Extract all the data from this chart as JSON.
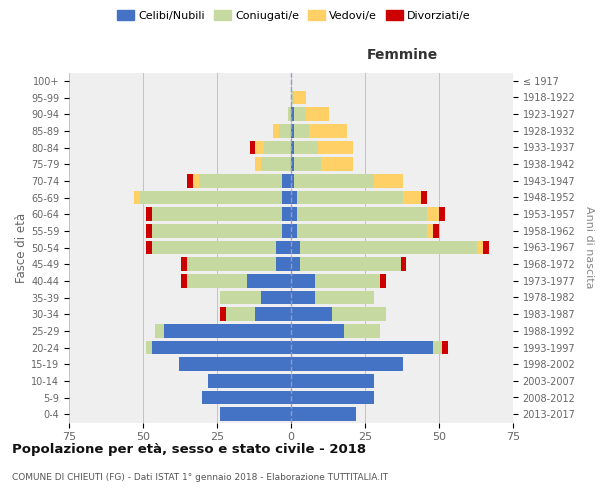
{
  "age_groups": [
    "0-4",
    "5-9",
    "10-14",
    "15-19",
    "20-24",
    "25-29",
    "30-34",
    "35-39",
    "40-44",
    "45-49",
    "50-54",
    "55-59",
    "60-64",
    "65-69",
    "70-74",
    "75-79",
    "80-84",
    "85-89",
    "90-94",
    "95-99",
    "100+"
  ],
  "birth_years": [
    "2013-2017",
    "2008-2012",
    "2003-2007",
    "1998-2002",
    "1993-1997",
    "1988-1992",
    "1983-1987",
    "1978-1982",
    "1973-1977",
    "1968-1972",
    "1963-1967",
    "1958-1962",
    "1953-1957",
    "1948-1952",
    "1943-1947",
    "1938-1942",
    "1933-1937",
    "1928-1932",
    "1923-1927",
    "1918-1922",
    "≤ 1917"
  ],
  "males": {
    "single": [
      24,
      30,
      28,
      38,
      47,
      43,
      12,
      10,
      15,
      5,
      5,
      3,
      3,
      3,
      3,
      0,
      0,
      0,
      0,
      0,
      0
    ],
    "married": [
      0,
      0,
      0,
      0,
      2,
      3,
      10,
      14,
      20,
      30,
      42,
      44,
      44,
      48,
      28,
      10,
      9,
      4,
      1,
      0,
      0
    ],
    "widowed": [
      0,
      0,
      0,
      0,
      0,
      0,
      0,
      0,
      0,
      0,
      0,
      0,
      0,
      2,
      2,
      2,
      3,
      2,
      0,
      0,
      0
    ],
    "divorced": [
      0,
      0,
      0,
      0,
      0,
      0,
      2,
      0,
      2,
      2,
      2,
      2,
      2,
      0,
      2,
      0,
      2,
      0,
      0,
      0,
      0
    ]
  },
  "females": {
    "single": [
      22,
      28,
      28,
      38,
      48,
      18,
      14,
      8,
      8,
      3,
      3,
      2,
      2,
      2,
      1,
      1,
      1,
      1,
      1,
      0,
      0
    ],
    "married": [
      0,
      0,
      0,
      0,
      3,
      12,
      18,
      20,
      22,
      34,
      60,
      44,
      44,
      36,
      27,
      9,
      8,
      5,
      4,
      1,
      0
    ],
    "widowed": [
      0,
      0,
      0,
      0,
      0,
      0,
      0,
      0,
      0,
      0,
      2,
      2,
      4,
      6,
      10,
      11,
      12,
      13,
      8,
      4,
      0
    ],
    "divorced": [
      0,
      0,
      0,
      0,
      2,
      0,
      0,
      0,
      2,
      2,
      2,
      2,
      2,
      2,
      0,
      0,
      0,
      0,
      0,
      0,
      0
    ]
  },
  "colors": {
    "single": "#4472C4",
    "married": "#C5D9A0",
    "widowed": "#FFD066",
    "divorced": "#CC0000"
  },
  "xlim": 75,
  "title": "Popolazione per età, sesso e stato civile - 2018",
  "subtitle": "COMUNE DI CHIEUTI (FG) - Dati ISTAT 1° gennaio 2018 - Elaborazione TUTTITALIA.IT",
  "ylabel": "Fasce di età",
  "right_label": "Anni di nascita",
  "right_header": "Femmine",
  "bg_color": "#efefef",
  "grid_color": "#cccccc"
}
